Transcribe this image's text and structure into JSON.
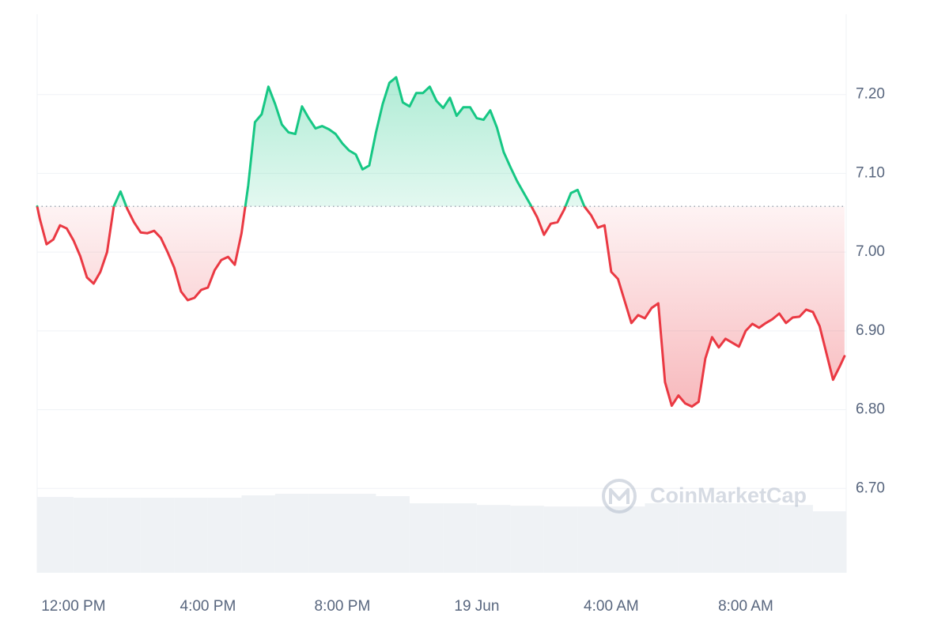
{
  "chart_data": {
    "type": "line",
    "watermark": "CoinMarketCap",
    "xlim": [
      -1.08,
      22.99
    ],
    "ylim": [
      6.593,
      7.302
    ],
    "y2lim": [
      0,
      700
    ],
    "open_price": 7.058,
    "grid": true,
    "colors": {
      "up": "#16c784",
      "down": "#ea3943",
      "volume": "#eff2f5",
      "grid": "#eff2f5",
      "reference": "#a0a7b3"
    },
    "xticks": [
      {
        "value": 0,
        "label": "12:00 PM"
      },
      {
        "value": 4,
        "label": "4:00 PM"
      },
      {
        "value": 8,
        "label": "8:00 PM"
      },
      {
        "value": 12,
        "label": "19 Jun"
      },
      {
        "value": 16,
        "label": "4:00 AM"
      },
      {
        "value": 20,
        "label": "8:00 AM"
      }
    ],
    "yticks": [
      {
        "value": 6.7,
        "label": "6.70"
      },
      {
        "value": 6.8,
        "label": "6.80"
      },
      {
        "value": 6.9,
        "label": "6.90"
      },
      {
        "value": 7.0,
        "label": "7.00"
      },
      {
        "value": 7.1,
        "label": "7.10"
      },
      {
        "value": 7.2,
        "label": "7.20"
      }
    ],
    "x": [
      -1.08,
      -1.0,
      -0.8,
      -0.6,
      -0.4,
      -0.2,
      0,
      0.2,
      0.4,
      0.6,
      0.8,
      1.0,
      1.2,
      1.4,
      1.6,
      1.8,
      2.0,
      2.2,
      2.4,
      2.6,
      2.8,
      3.0,
      3.2,
      3.4,
      3.6,
      3.8,
      4.0,
      4.2,
      4.4,
      4.6,
      4.8,
      5.0,
      5.2,
      5.4,
      5.6,
      5.8,
      6.0,
      6.2,
      6.4,
      6.6,
      6.8,
      7.0,
      7.2,
      7.4,
      7.6,
      7.8,
      8.0,
      8.2,
      8.4,
      8.6,
      8.8,
      9.0,
      9.2,
      9.4,
      9.6,
      9.8,
      10.0,
      10.2,
      10.4,
      10.6,
      10.8,
      11.0,
      11.2,
      11.4,
      11.6,
      11.8,
      12.0,
      12.2,
      12.4,
      12.6,
      12.8,
      13.0,
      13.2,
      13.4,
      13.6,
      13.8,
      14.0,
      14.2,
      14.4,
      14.6,
      14.8,
      15.0,
      15.2,
      15.4,
      15.6,
      15.8,
      16.0,
      16.2,
      16.4,
      16.6,
      16.8,
      17.0,
      17.2,
      17.4,
      17.6,
      17.8,
      18.0,
      18.2,
      18.4,
      18.6,
      18.8,
      19.0,
      19.2,
      19.4,
      19.6,
      19.8,
      20.0,
      20.2,
      20.4,
      20.6,
      20.8,
      21.0,
      21.2,
      21.4,
      21.6,
      21.8,
      22.0,
      22.2,
      22.4,
      22.6,
      22.8,
      22.94
    ],
    "values": [
      7.058,
      7.042,
      7.01,
      7.016,
      7.034,
      7.03,
      7.015,
      6.995,
      6.968,
      6.96,
      6.975,
      7.0,
      7.058,
      7.077,
      7.055,
      7.038,
      7.025,
      7.024,
      7.027,
      7.018,
      7.0,
      6.98,
      6.95,
      6.939,
      6.942,
      6.952,
      6.955,
      6.977,
      6.99,
      6.994,
      6.984,
      7.024,
      7.085,
      7.165,
      7.175,
      7.21,
      7.188,
      7.162,
      7.152,
      7.15,
      7.185,
      7.17,
      7.157,
      7.16,
      7.156,
      7.15,
      7.138,
      7.129,
      7.124,
      7.105,
      7.11,
      7.152,
      7.188,
      7.215,
      7.222,
      7.19,
      7.185,
      7.202,
      7.202,
      7.21,
      7.192,
      7.183,
      7.196,
      7.173,
      7.184,
      7.184,
      7.17,
      7.168,
      7.18,
      7.158,
      7.127,
      7.108,
      7.09,
      7.075,
      7.06,
      7.044,
      7.022,
      7.036,
      7.038,
      7.054,
      7.075,
      7.079,
      7.058,
      7.047,
      7.031,
      7.034,
      6.975,
      6.966,
      6.938,
      6.91,
      6.92,
      6.916,
      6.929,
      6.935,
      6.835,
      6.805,
      6.818,
      6.808,
      6.804,
      6.81,
      6.865,
      6.892,
      6.879,
      6.89,
      6.885,
      6.88,
      6.9,
      6.909,
      6.904,
      6.91,
      6.915,
      6.922,
      6.91,
      6.917,
      6.918,
      6.927,
      6.924,
      6.906,
      6.872,
      6.838,
      6.855,
      6.868
    ],
    "volume": {
      "axis": "y2",
      "x": [
        -1.08,
        0,
        1,
        2,
        3,
        4,
        5,
        6,
        7,
        8,
        9,
        10,
        11,
        12,
        13,
        14,
        15,
        16,
        17,
        18,
        19,
        20,
        21,
        22
      ],
      "values": [
        95,
        94,
        94,
        94,
        94,
        94,
        97,
        99,
        99,
        99,
        96,
        87,
        87,
        85,
        84,
        83,
        83,
        83,
        87,
        87,
        87,
        87,
        85,
        77
      ]
    }
  }
}
